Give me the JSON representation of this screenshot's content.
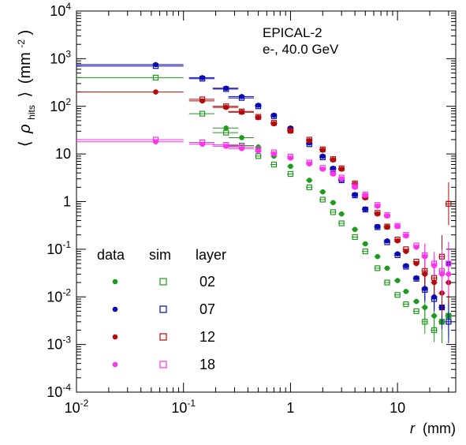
{
  "chart_data": {
    "type": "scatter",
    "annotation_lines": [
      "EPICAL-2",
      "e-, 40.0 GeV"
    ],
    "xlabel": "r (mm)",
    "xlabel_var": "r",
    "xlabel_unit": "(mm)",
    "ylabel": "⟨ ρ_hits ⟩ (mm⁻²)",
    "ylabel_parts": {
      "open": "⟨",
      "rho": "ρ",
      "sub": "hits",
      "close": "⟩",
      "unit": "(mm",
      "exp": "-2",
      "unit_close": ")"
    },
    "x_scale": "log",
    "y_scale": "log",
    "xlim": [
      0.01,
      35
    ],
    "ylim": [
      0.0001,
      10000
    ],
    "x_ticks": [
      {
        "v": 0.01,
        "base": "10",
        "exp": "-2"
      },
      {
        "v": 0.1,
        "base": "10",
        "exp": "-1"
      },
      {
        "v": 1,
        "base": "1",
        "exp": ""
      },
      {
        "v": 10,
        "base": "10",
        "exp": ""
      }
    ],
    "y_ticks": [
      {
        "v": 0.0001,
        "base": "10",
        "exp": "-4"
      },
      {
        "v": 0.001,
        "base": "10",
        "exp": "-3"
      },
      {
        "v": 0.01,
        "base": "10",
        "exp": "-2"
      },
      {
        "v": 0.1,
        "base": "10",
        "exp": "-1"
      },
      {
        "v": 1,
        "base": "1",
        "exp": ""
      },
      {
        "v": 10,
        "base": "10",
        "exp": ""
      },
      {
        "v": 100,
        "base": "10",
        "exp": "2"
      },
      {
        "v": 1000,
        "base": "10",
        "exp": "3"
      },
      {
        "v": 10000,
        "base": "10",
        "exp": "4"
      }
    ],
    "legend": {
      "position": "bottom-left",
      "headers": [
        "data",
        "sim",
        "layer"
      ],
      "entries": [
        {
          "layer": "02",
          "color": "#1e9a1e"
        },
        {
          "layer": "07",
          "color": "#0a0ab4"
        },
        {
          "layer": "12",
          "color": "#b40a0a"
        },
        {
          "layer": "18",
          "color": "#ff33ee"
        }
      ]
    },
    "series": [
      {
        "layer": "02",
        "kind": "data",
        "color": "#1e9a1e",
        "x": [
          0.25,
          0.35,
          0.5,
          0.7,
          1.0,
          1.5,
          2.0,
          2.5,
          3.0,
          4.0,
          5.0,
          6.5,
          8.0,
          10.0,
          12.0,
          15.0,
          18.0,
          22.0,
          26.0,
          30.0
        ],
        "y": [
          35,
          22,
          14,
          9,
          5.5,
          2.8,
          1.6,
          0.95,
          0.55,
          0.26,
          0.13,
          0.07,
          0.04,
          0.022,
          0.013,
          0.008,
          0.006,
          0.004,
          0.003,
          0.004
        ]
      },
      {
        "layer": "02",
        "kind": "sim",
        "color": "#1e9a1e",
        "x": [
          0.055,
          0.15,
          0.25,
          0.35,
          0.5,
          0.7,
          1.0,
          1.5,
          2.0,
          2.5,
          3.0,
          4.0,
          5.0,
          6.5,
          8.0,
          10.0,
          12.0,
          15.0,
          18.0,
          22.0,
          26.0,
          30.0
        ],
        "y": [
          400,
          70,
          28,
          15,
          9,
          6,
          3.8,
          2.0,
          1.1,
          0.6,
          0.35,
          0.18,
          0.09,
          0.04,
          0.02,
          0.011,
          0.007,
          0.005,
          0.003,
          0.002,
          0.003,
          0.004
        ]
      },
      {
        "layer": "07",
        "kind": "data",
        "color": "#0a0ab4",
        "x": [
          0.055,
          0.15,
          0.25,
          0.35,
          0.5,
          0.7,
          1.0,
          1.5,
          2.0,
          2.5,
          3.0,
          4.0,
          5.0,
          6.5,
          8.0,
          10.0,
          12.0,
          15.0,
          18.0,
          22.0,
          26.0,
          30.0
        ],
        "y": [
          750,
          400,
          240,
          160,
          105,
          65,
          35,
          17,
          9,
          5,
          2.9,
          1.4,
          0.7,
          0.3,
          0.15,
          0.08,
          0.045,
          0.025,
          0.015,
          0.01,
          0.006,
          0.05
        ]
      },
      {
        "layer": "07",
        "kind": "sim",
        "color": "#0a0ab4",
        "x": [
          0.055,
          0.15,
          0.25,
          0.35,
          0.5,
          0.7,
          1.0,
          1.5,
          2.0,
          2.5,
          3.0,
          4.0,
          5.0,
          6.5,
          8.0,
          10.0,
          12.0,
          15.0,
          18.0,
          22.0,
          26.0,
          30.0
        ],
        "y": [
          700,
          380,
          230,
          150,
          100,
          62,
          33,
          16,
          8.5,
          4.8,
          2.8,
          1.35,
          0.68,
          0.29,
          0.14,
          0.075,
          0.043,
          0.024,
          0.014,
          0.009,
          0.006,
          0.003
        ]
      },
      {
        "layer": "12",
        "kind": "data",
        "color": "#b40a0a",
        "x": [
          0.055,
          0.15,
          0.25,
          0.35,
          0.5,
          0.7,
          1.0,
          1.5,
          2.0,
          2.5,
          3.0,
          4.0,
          5.0,
          6.5,
          8.0,
          10.0,
          12.0,
          15.0,
          18.0,
          22.0,
          26.0,
          30.0
        ],
        "y": [
          200,
          130,
          95,
          75,
          58,
          43,
          30,
          19,
          12,
          7.5,
          4.8,
          2.3,
          1.2,
          0.55,
          0.29,
          0.15,
          0.09,
          0.05,
          0.03,
          0.02,
          0.012,
          0.02
        ]
      },
      {
        "layer": "12",
        "kind": "sim",
        "color": "#b40a0a",
        "x": [
          0.15,
          0.25,
          0.35,
          0.5,
          0.7,
          1.0,
          1.5,
          2.0,
          2.5,
          3.0,
          4.0,
          5.0,
          6.5,
          8.0,
          10.0,
          12.0,
          15.0,
          18.0,
          22.0,
          26.0,
          30.0
        ],
        "y": [
          140,
          100,
          78,
          60,
          45,
          31,
          20,
          12.5,
          7.8,
          5.0,
          2.4,
          1.25,
          0.58,
          0.3,
          0.16,
          0.1,
          0.055,
          0.035,
          0.025,
          0.07,
          0.9
        ]
      },
      {
        "layer": "18",
        "kind": "data",
        "color": "#ff33ee",
        "x": [
          0.055,
          0.15,
          0.25,
          0.35,
          0.5,
          0.7,
          1.0,
          1.5,
          2.0,
          2.5,
          3.0,
          4.0,
          5.0,
          6.5,
          8.0,
          10.0,
          12.0,
          15.0,
          18.0,
          22.0,
          26.0,
          30.0
        ],
        "y": [
          18,
          16,
          14.5,
          13,
          11.5,
          10,
          8.2,
          6.2,
          4.8,
          3.8,
          3.0,
          2.0,
          1.35,
          0.8,
          0.5,
          0.3,
          0.19,
          0.11,
          0.07,
          0.045,
          0.03,
          0.03
        ]
      },
      {
        "layer": "18",
        "kind": "sim",
        "color": "#ff33ee",
        "x": [
          0.055,
          0.15,
          0.25,
          0.35,
          0.5,
          0.7,
          1.0,
          1.5,
          2.0,
          2.5,
          3.0,
          4.0,
          5.0,
          6.5,
          8.0,
          10.0,
          12.0,
          15.0,
          18.0,
          22.0,
          26.0,
          30.0
        ],
        "y": [
          20,
          17.5,
          15.5,
          14,
          12.5,
          10.8,
          8.8,
          6.6,
          5.1,
          4.0,
          3.2,
          2.1,
          1.4,
          0.85,
          0.52,
          0.31,
          0.2,
          0.12,
          0.075,
          0.05,
          0.035,
          0.05
        ]
      }
    ]
  }
}
